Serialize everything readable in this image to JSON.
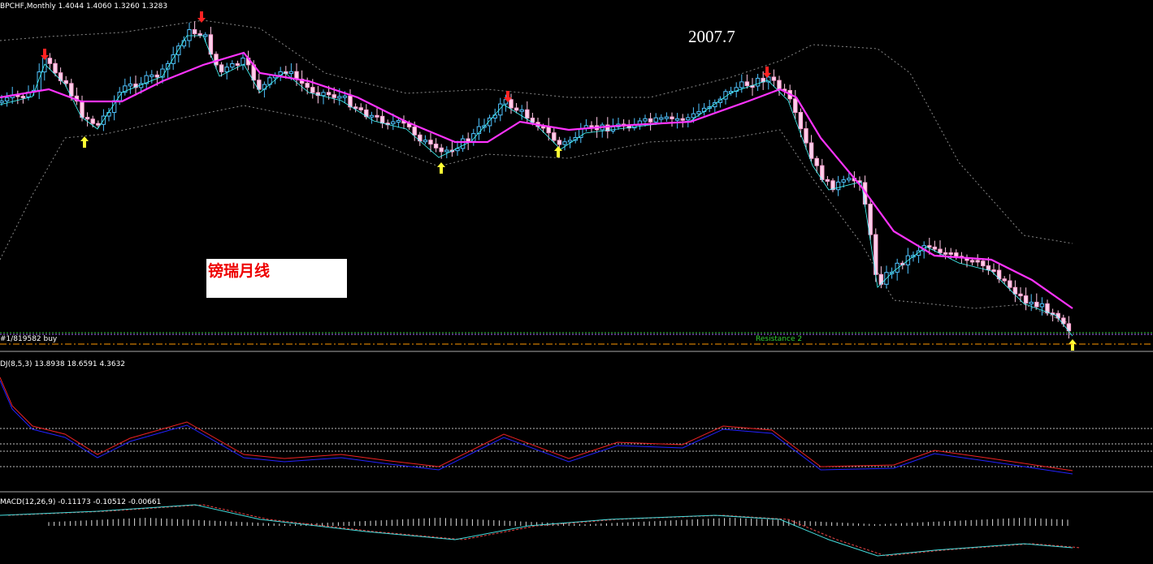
{
  "header": {
    "symbol_info": "BPCHF,Monthly  1.4044 1.4060 1.3260 1.3283"
  },
  "annotations": {
    "date_label": "2007.7",
    "chart_name": "镑瑞月线"
  },
  "lines": {
    "order_label": "#1/819582 buy",
    "level_label": "Resistance 2"
  },
  "indicators": {
    "kdj_label": "DJ(8,5,3) 13.8938 18.6591 4.3632",
    "macd_label": "MACD(12,26,9) -0.11173 -0.10512 -0.00661"
  }
}
